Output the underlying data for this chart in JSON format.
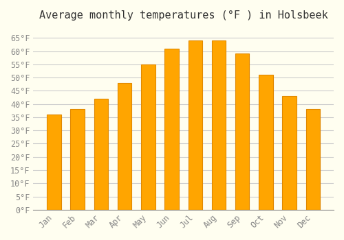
{
  "title": "Average monthly temperatures (°F ) in Holsbeek",
  "months": [
    "Jan",
    "Feb",
    "Mar",
    "Apr",
    "May",
    "Jun",
    "Jul",
    "Aug",
    "Sep",
    "Oct",
    "Nov",
    "Dec"
  ],
  "values": [
    36,
    38,
    42,
    48,
    55,
    61,
    64,
    64,
    59,
    51,
    43,
    38
  ],
  "bar_color": "#FFA500",
  "bar_edge_color": "#E08800",
  "background_color": "#FFFEF0",
  "grid_color": "#CCCCCC",
  "text_color": "#888888",
  "ylim": [
    0,
    68
  ],
  "yticks": [
    0,
    5,
    10,
    15,
    20,
    25,
    30,
    35,
    40,
    45,
    50,
    55,
    60,
    65
  ],
  "title_fontsize": 11,
  "tick_fontsize": 8.5
}
